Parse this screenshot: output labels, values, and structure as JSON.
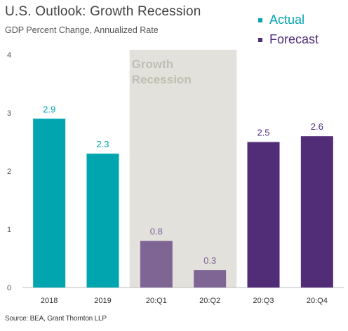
{
  "title": "U.S. Outlook: Growth Recession",
  "subtitle": "GDP Percent Change, Annualized Rate",
  "source": "Source: BEA, Grant Thornton LLP",
  "colors": {
    "actual": "#00a5b0",
    "forecast": "#512d78",
    "recession_bar": "#7e6594",
    "shade": "#e3e1dc",
    "shade_text": "#c1bdb3"
  },
  "legend": [
    {
      "name": "Actual",
      "color": "#00a5b0"
    },
    {
      "name": "Forecast",
      "color": "#512d78"
    }
  ],
  "chart_data": {
    "type": "bar",
    "categories": [
      "2018",
      "2019",
      "20:Q1",
      "20:Q2",
      "20:Q3",
      "20:Q4"
    ],
    "values": [
      2.9,
      2.3,
      0.8,
      0.3,
      2.5,
      2.6
    ],
    "data_labels": [
      "2.9",
      "2.3",
      "0.8",
      "0.3",
      "2.5",
      "2.6"
    ],
    "kinds": [
      "actual",
      "actual",
      "recession",
      "recession",
      "forecast",
      "forecast"
    ],
    "ylim": [
      0,
      4
    ],
    "yticks": [
      "0",
      "1",
      "2",
      "3",
      "4"
    ],
    "grid": false,
    "legend_position": "top-right",
    "annotation": {
      "label_line1": "Growth",
      "label_line2": "Recession",
      "from": "20:Q1",
      "to": "20:Q2"
    }
  }
}
